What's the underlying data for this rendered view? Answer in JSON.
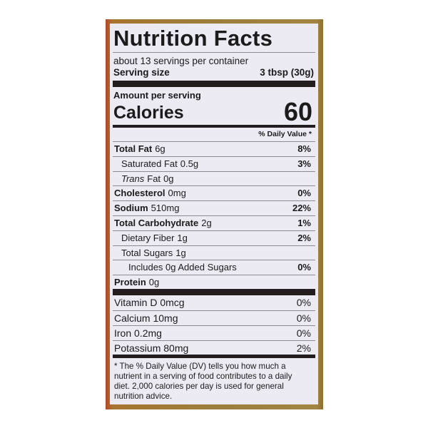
{
  "title": "Nutrition Facts",
  "servings_per_container": "about 13 servings per container",
  "serving_size": {
    "label": "Serving size",
    "value": "3 tbsp (30g)"
  },
  "amount_per_serving": "Amount per serving",
  "calories": {
    "label": "Calories",
    "value": "60"
  },
  "daily_value_header": "% Daily Value *",
  "nutrients": [
    {
      "name": "Total Fat",
      "amount": "6g",
      "dv": "8%",
      "bold": true,
      "indent": 0
    },
    {
      "name": "Saturated Fat",
      "amount": "0.5g",
      "dv": "3%",
      "bold": false,
      "indent": 1
    },
    {
      "name": "Trans",
      "name_suffix": "Fat",
      "amount": "0g",
      "dv": "",
      "bold": false,
      "indent": 1
    },
    {
      "name": "Cholesterol",
      "amount": "0mg",
      "dv": "0%",
      "bold": true,
      "indent": 0
    },
    {
      "name": "Sodium",
      "amount": "510mg",
      "dv": "22%",
      "bold": true,
      "indent": 0
    },
    {
      "name": "Total Carbohydrate",
      "amount": "2g",
      "dv": "1%",
      "bold": true,
      "indent": 0
    },
    {
      "name": "Dietary Fiber",
      "amount": "1g",
      "dv": "2%",
      "bold": false,
      "indent": 1
    },
    {
      "name": "Total Sugars",
      "amount": "1g",
      "dv": "",
      "bold": false,
      "indent": 1
    },
    {
      "name": "Includes 0g Added Sugars",
      "amount": "",
      "dv": "0%",
      "bold": false,
      "indent": 2
    },
    {
      "name": "Protein",
      "amount": "0g",
      "dv": "",
      "bold": true,
      "indent": 0
    }
  ],
  "vitamins": [
    {
      "label": "Vitamin D 0mcg",
      "dv": "0%"
    },
    {
      "label": "Calcium 10mg",
      "dv": "0%"
    },
    {
      "label": "Iron 0.2mg",
      "dv": "0%"
    },
    {
      "label": "Potassium 80mg",
      "dv": "2%"
    }
  ],
  "footnote": "* The % Daily Value (DV) tells you how much a nutrient in a serving of food contributes to a daily diet. 2,000 calories per day is used for general nutrition advice.",
  "colors": {
    "panel": "#ecebf4",
    "ink": "#1c1a1a",
    "frame": "#9c7e3c"
  }
}
